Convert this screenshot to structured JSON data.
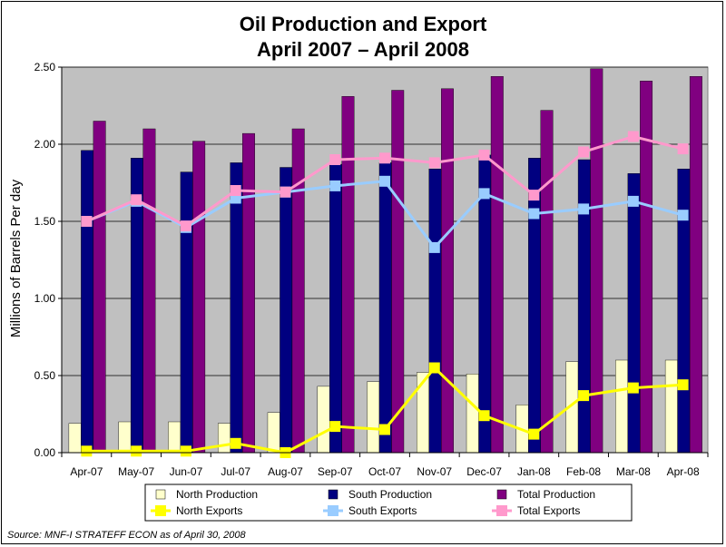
{
  "chart_data": {
    "type": "bar",
    "title_lines": [
      "Oil Production and Export",
      "April 2007 – April 2008"
    ],
    "xlabel": "",
    "ylabel": "Millions of Barrels Per day",
    "ylim": [
      0,
      2.5
    ],
    "yticks": [
      "0.00",
      "0.50",
      "1.00",
      "1.50",
      "2.00",
      "2.50"
    ],
    "ytick_values": [
      0,
      0.5,
      1.0,
      1.5,
      2.0,
      2.5
    ],
    "grid": true,
    "legend_position": "bottom",
    "categories": [
      "Apr-07",
      "May-07",
      "Jun-07",
      "Jul-07",
      "Aug-07",
      "Sep-07",
      "Oct-07",
      "Nov-07",
      "Dec-07",
      "Jan-08",
      "Feb-08",
      "Mar-08",
      "Apr-08"
    ],
    "bar_series": [
      {
        "name": "North Production",
        "color": "#ffffcc",
        "values": [
          0.19,
          0.2,
          0.2,
          0.19,
          0.26,
          0.43,
          0.46,
          0.52,
          0.51,
          0.31,
          0.59,
          0.6,
          0.6
        ]
      },
      {
        "name": "South Production",
        "color": "#000080",
        "values": [
          1.96,
          1.91,
          1.82,
          1.88,
          1.85,
          1.87,
          1.88,
          1.84,
          1.93,
          1.91,
          1.9,
          1.81,
          1.84
        ]
      },
      {
        "name": "Total Production",
        "color": "#800080",
        "values": [
          2.15,
          2.1,
          2.02,
          2.07,
          2.1,
          2.31,
          2.35,
          2.36,
          2.44,
          2.22,
          2.49,
          2.41,
          2.44
        ]
      }
    ],
    "line_series": [
      {
        "name": "North Exports",
        "color": "#ffff00",
        "values": [
          0.01,
          0.01,
          0.01,
          0.06,
          0.0,
          0.17,
          0.15,
          0.55,
          0.24,
          0.12,
          0.37,
          0.42,
          0.44
        ]
      },
      {
        "name": "South Exports",
        "color": "#99ccff",
        "values": [
          1.5,
          1.63,
          1.46,
          1.65,
          1.69,
          1.73,
          1.76,
          1.33,
          1.68,
          1.55,
          1.58,
          1.63,
          1.54
        ]
      },
      {
        "name": "Total Exports",
        "color": "#ff99cc",
        "values": [
          1.5,
          1.64,
          1.47,
          1.7,
          1.69,
          1.9,
          1.91,
          1.88,
          1.93,
          1.67,
          1.95,
          2.05,
          1.97
        ]
      }
    ],
    "legend": [
      [
        "North Production",
        "South Production",
        "Total Production"
      ],
      [
        "North Exports",
        "South Exports",
        "Total Exports"
      ]
    ],
    "plot_background": "#c0c0c0",
    "source": "Source:  MNF-I STRATEFF ECON as of April 30, 2008"
  }
}
